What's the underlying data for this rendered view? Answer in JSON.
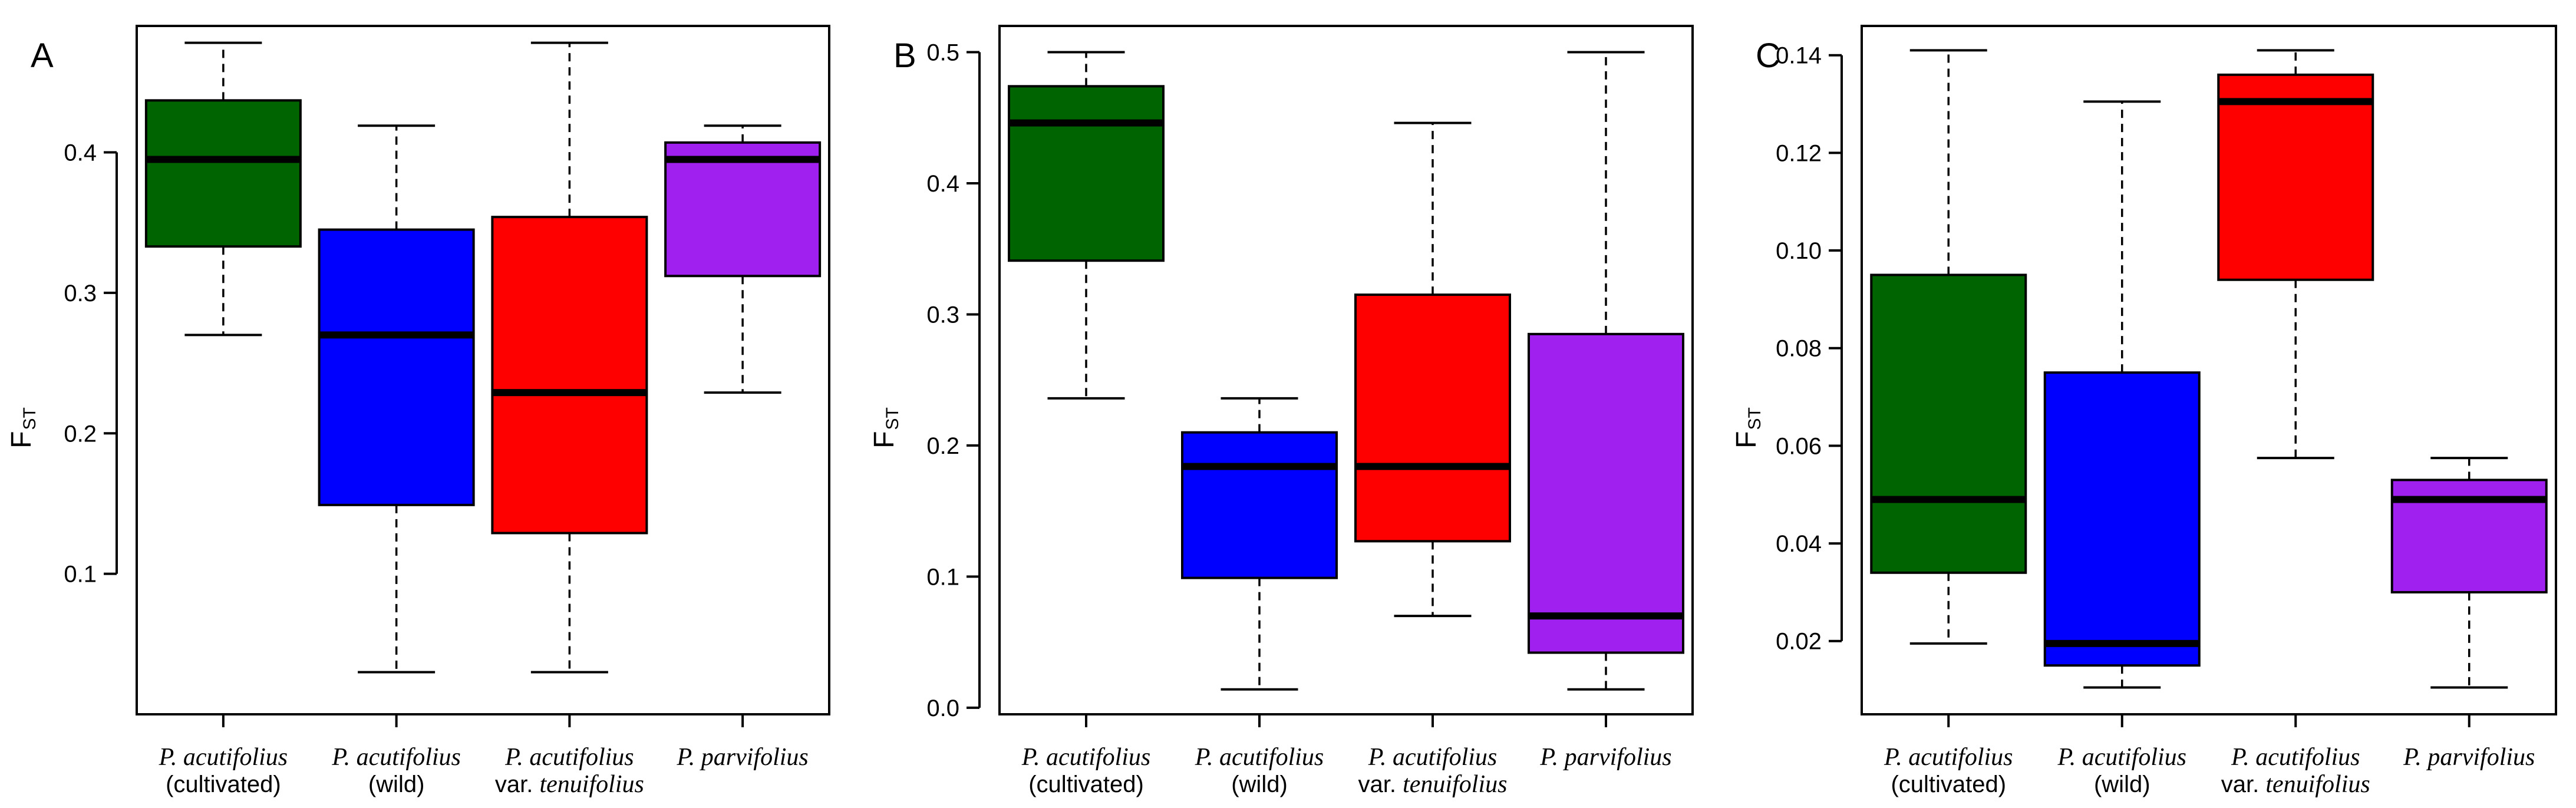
{
  "chart_data": [
    {
      "type": "box",
      "panel": "A",
      "ylabel_main": "F",
      "ylabel_sub": "ST",
      "ylim": [
        0.0,
        0.49
      ],
      "yticks": [
        0.1,
        0.2,
        0.3,
        0.4
      ],
      "ytick_labels": [
        "0.1",
        "0.2",
        "0.3",
        "0.4"
      ],
      "categories": [
        {
          "species": "P. acutifolius",
          "qualifier": "(cultivated)",
          "color": "#006400"
        },
        {
          "species": "P. acutifolius",
          "qualifier": "(wild)",
          "color": "#0000ff"
        },
        {
          "species": "P. acutifolius",
          "qualifier": "var. tenuifolius",
          "color": "#ff0000"
        },
        {
          "species": "P. parvifolius",
          "qualifier": "",
          "color": "#a020f0"
        }
      ],
      "boxes": [
        {
          "min": 0.27,
          "q1": 0.333,
          "median": 0.395,
          "q3": 0.437,
          "max": 0.478
        },
        {
          "min": 0.03,
          "q1": 0.149,
          "median": 0.27,
          "q3": 0.345,
          "max": 0.419
        },
        {
          "min": 0.03,
          "q1": 0.129,
          "median": 0.229,
          "q3": 0.354,
          "max": 0.478
        },
        {
          "min": 0.229,
          "q1": 0.312,
          "median": 0.395,
          "q3": 0.407,
          "max": 0.419
        }
      ]
    },
    {
      "type": "box",
      "panel": "B",
      "ylabel_main": "F",
      "ylabel_sub": "ST",
      "ylim": [
        -0.005,
        0.52
      ],
      "yticks": [
        0.0,
        0.1,
        0.2,
        0.3,
        0.4,
        0.5
      ],
      "ytick_labels": [
        "0.0",
        "0.1",
        "0.2",
        "0.3",
        "0.4",
        "0.5"
      ],
      "categories": [
        {
          "species": "P. acutifolius",
          "qualifier": "(cultivated)",
          "color": "#006400"
        },
        {
          "species": "P. acutifolius",
          "qualifier": "(wild)",
          "color": "#0000ff"
        },
        {
          "species": "P. acutifolius",
          "qualifier": "var. tenuifolius",
          "color": "#ff0000"
        },
        {
          "species": "P. parvifolius",
          "qualifier": "",
          "color": "#a020f0"
        }
      ],
      "boxes": [
        {
          "min": 0.236,
          "q1": 0.341,
          "median": 0.446,
          "q3": 0.474,
          "max": 0.5
        },
        {
          "min": 0.014,
          "q1": 0.099,
          "median": 0.184,
          "q3": 0.21,
          "max": 0.236
        },
        {
          "min": 0.07,
          "q1": 0.127,
          "median": 0.184,
          "q3": 0.315,
          "max": 0.446
        },
        {
          "min": 0.014,
          "q1": 0.042,
          "median": 0.07,
          "q3": 0.285,
          "max": 0.5
        }
      ]
    },
    {
      "type": "box",
      "panel": "C",
      "ylabel_main": "F",
      "ylabel_sub": "ST",
      "ylim": [
        0.005,
        0.146
      ],
      "yticks": [
        0.02,
        0.04,
        0.06,
        0.08,
        0.1,
        0.12,
        0.14
      ],
      "ytick_labels": [
        "0.02",
        "0.04",
        "0.06",
        "0.08",
        "0.10",
        "0.12",
        "0.14"
      ],
      "categories": [
        {
          "species": "P. acutifolius",
          "qualifier": "(cultivated)",
          "color": "#006400"
        },
        {
          "species": "P. acutifolius",
          "qualifier": "(wild)",
          "color": "#0000ff"
        },
        {
          "species": "P. acutifolius",
          "qualifier": "var. tenuifolius",
          "color": "#ff0000"
        },
        {
          "species": "P. parvifolius",
          "qualifier": "",
          "color": "#a020f0"
        }
      ],
      "boxes": [
        {
          "min": 0.0195,
          "q1": 0.034,
          "median": 0.049,
          "q3": 0.095,
          "max": 0.141
        },
        {
          "min": 0.0105,
          "q1": 0.015,
          "median": 0.0195,
          "q3": 0.075,
          "max": 0.1305
        },
        {
          "min": 0.0575,
          "q1": 0.094,
          "median": 0.1305,
          "q3": 0.136,
          "max": 0.141
        },
        {
          "min": 0.0105,
          "q1": 0.03,
          "median": 0.049,
          "q3": 0.053,
          "max": 0.0575
        }
      ]
    }
  ]
}
